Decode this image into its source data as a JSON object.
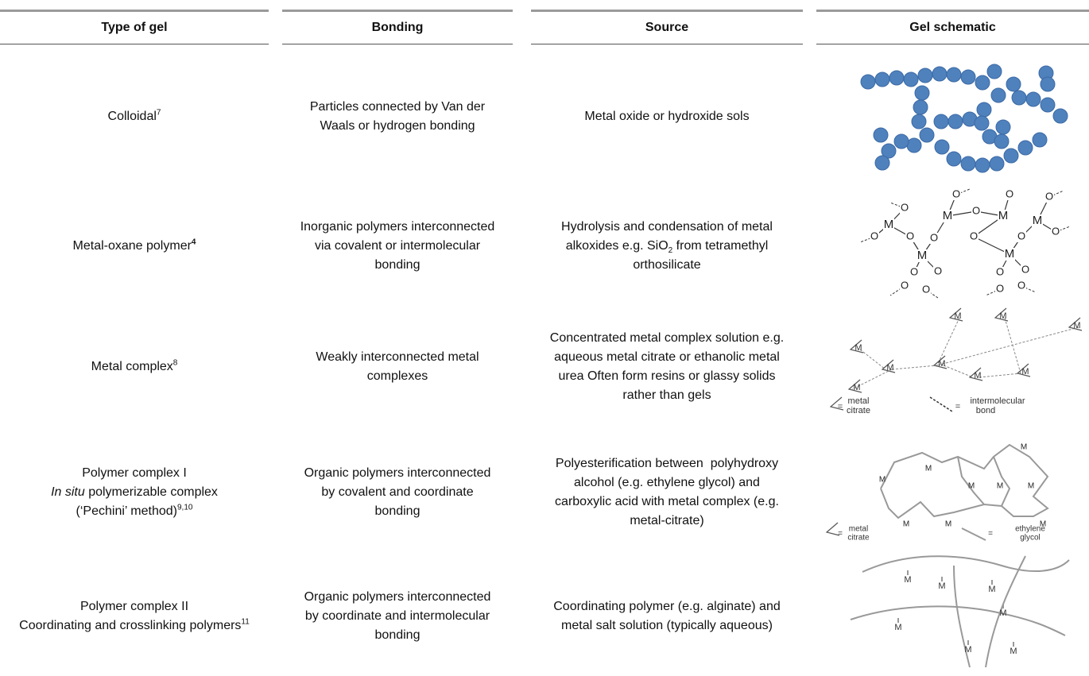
{
  "table": {
    "header": [
      "Type of gel",
      "Bonding",
      "Source",
      "Gel schematic"
    ],
    "rows": [
      {
        "type": [
          [
            "Colloidal",
            {
              "text": "7",
              "style": "sup"
            }
          ]
        ],
        "bonding": [
          [
            "Particles connected by Van der Waals or hydrogen bonding"
          ]
        ],
        "source": [
          [
            "Metal oxide or hydroxide sols"
          ]
        ]
      },
      {
        "type": [
          [
            "Metal-oxane polymer",
            {
              "text": "4",
              "style": "supb"
            }
          ]
        ],
        "bonding": [
          [
            "Inorganic polymers interconnected via covalent or intermolecular bonding"
          ]
        ],
        "source": [
          [
            "Hydrolysis and condensation of metal alkoxides e.g. SiO",
            {
              "text": "2",
              "style": "sub"
            },
            " from tetramethyl orthosilicate"
          ]
        ]
      },
      {
        "type": [
          [
            "Metal complex",
            {
              "text": "8",
              "style": "sup"
            }
          ]
        ],
        "bonding": [
          [
            "Weakly interconnected metal complexes"
          ]
        ],
        "source": [
          [
            "Concentrated metal complex solution e.g. aqueous metal citrate or ethanolic metal urea Often form resins or glassy solids rather than gels"
          ]
        ]
      },
      {
        "type": [
          [
            "Polymer complex I"
          ],
          [
            {
              "text": "In situ",
              "style": "i"
            },
            " polymerizable complex"
          ],
          [
            "(‘Pechini’ method)",
            {
              "text": "9,10",
              "style": "sup"
            }
          ]
        ],
        "bonding": [
          [
            "Organic polymers interconnected by covalent and coordinate bonding"
          ]
        ],
        "source": [
          [
            "Polyesterification between  polyhydroxy alcohol (e.g. ethylene glycol) and carboxylic acid with metal complex (e.g. metal-citrate)"
          ]
        ]
      },
      {
        "type": [
          [
            "Polymer complex II"
          ],
          [
            "Coordinating and crosslinking polymers",
            {
              "text": "11",
              "style": "sup"
            }
          ]
        ],
        "bonding": [
          [
            "Organic polymers interconnected by coordinate and intermolecular bonding"
          ]
        ],
        "source": [
          [
            "Coordinating polymer (e.g. alginate) and metal salt solution (typically aqueous)"
          ]
        ]
      }
    ]
  },
  "schematic_text": {
    "metal": "M",
    "oxygen": "O",
    "equals": "=",
    "citrate_label": [
      "metal",
      "citrate"
    ],
    "bond_label": [
      "intermolecular",
      "bond"
    ],
    "glycol_label": [
      "ethylene",
      "glycol"
    ]
  }
}
